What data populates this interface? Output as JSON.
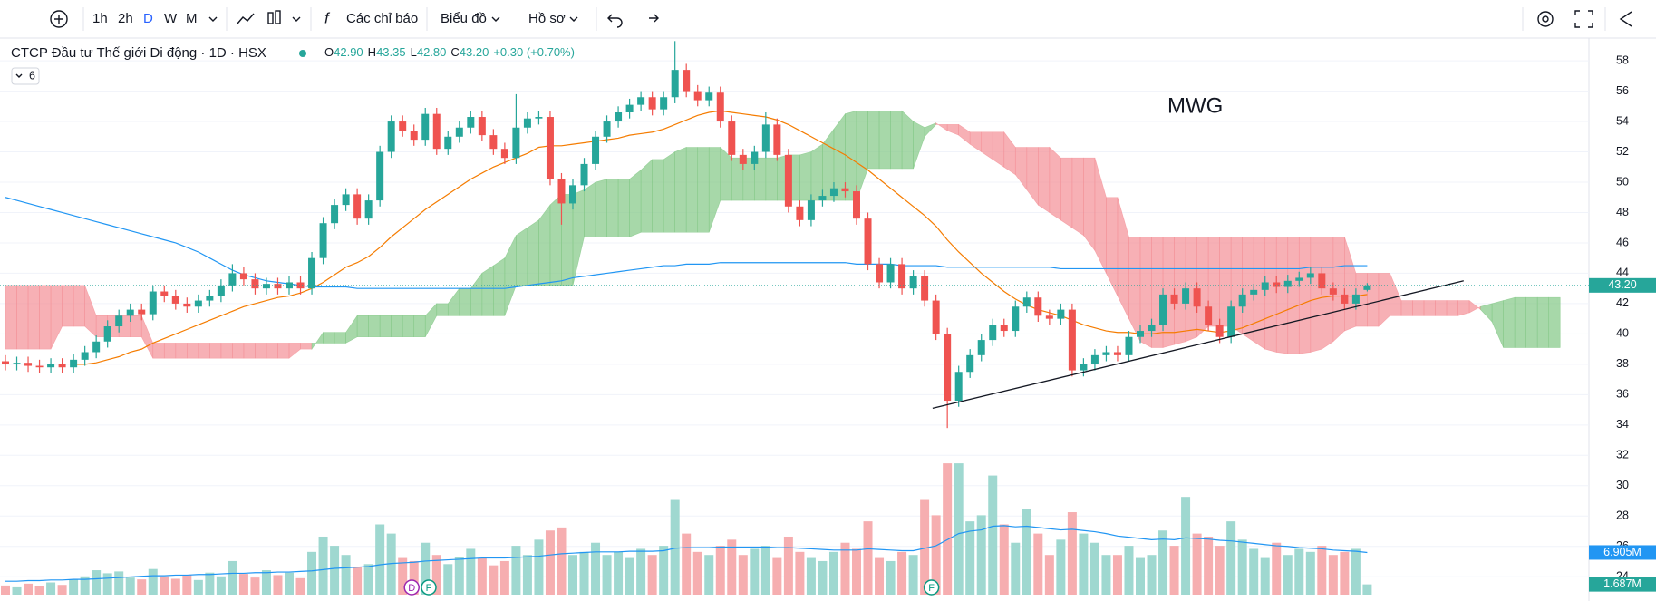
{
  "toolbar": {
    "intervals": [
      "1h",
      "2h",
      "D",
      "W",
      "M"
    ],
    "indicators": "Các chỉ báo",
    "chart": "Biểu đồ",
    "profile": "Hồ sơ"
  },
  "legend": {
    "indicator_count": "6",
    "ohlc": [
      "O",
      "42.90",
      "H",
      "43.35",
      "L",
      "42.80",
      "C",
      "43.20",
      "+0.30 (+0.70%)"
    ]
  },
  "chart_data": {
    "type": "candlestick",
    "title": "CTCP Đầu tư Thế giới Di động · 1D · HSX",
    "annotation": "MWG",
    "up_color": "#26a69a",
    "down_color": "#ef5350",
    "volume_up_color": "#9fd8d0",
    "volume_down_color": "#f6aeb0",
    "ylim": [
      22.4,
      59.2
    ],
    "yticks": [
      24,
      26,
      28,
      30,
      32,
      34,
      36,
      38,
      40,
      42,
      44,
      46,
      48,
      50,
      52,
      54,
      56,
      58
    ],
    "grid": true,
    "vlim": [
      0,
      23
    ],
    "open": [
      38.2,
      38.0,
      38.1,
      37.9,
      37.8,
      38.0,
      37.8,
      38.3,
      38.8,
      39.5,
      40.5,
      41.2,
      41.6,
      41.3,
      42.8,
      42.5,
      42.0,
      41.8,
      42.2,
      42.5,
      43.2,
      44.0,
      43.6,
      43.0,
      43.3,
      43.0,
      43.4,
      43.0,
      45.0,
      47.3,
      48.5,
      49.2,
      47.6,
      48.8,
      52.0,
      54.0,
      53.4,
      52.8,
      54.5,
      52.2,
      53.0,
      53.6,
      54.3,
      53.1,
      52.2,
      51.6,
      53.6,
      54.2,
      54.3,
      50.2,
      48.6,
      49.8,
      51.2,
      53.0,
      54.0,
      54.6,
      55.1,
      55.6,
      54.8,
      55.6,
      57.4,
      56.0,
      55.4,
      55.9,
      54.0,
      51.8,
      51.2,
      52.0,
      53.8,
      51.8,
      48.4,
      47.5,
      48.8,
      49.1,
      49.6,
      49.4,
      47.6,
      44.6,
      43.4,
      44.6,
      43.0,
      43.8,
      42.2,
      40.0,
      35.6,
      37.5,
      38.6,
      39.6,
      40.6,
      40.2,
      41.8,
      42.4,
      41.2,
      41.0,
      41.6,
      37.6,
      38.0,
      38.6,
      38.8,
      38.6,
      39.8,
      40.2,
      40.6,
      42.6,
      42.0,
      43.0,
      41.8,
      40.6,
      39.8,
      41.8,
      42.6,
      42.9,
      43.4,
      43.1,
      43.5,
      43.7,
      44.0,
      43.0,
      42.6,
      42.0,
      42.9
    ],
    "high": [
      38.6,
      38.5,
      38.5,
      38.3,
      38.4,
      38.4,
      38.7,
      39.2,
      39.9,
      40.9,
      41.6,
      42.0,
      42.0,
      43.2,
      43.2,
      42.9,
      42.4,
      42.6,
      42.9,
      43.6,
      44.6,
      44.4,
      44.0,
      43.7,
      43.7,
      43.8,
      43.8,
      45.4,
      47.7,
      48.9,
      49.6,
      49.6,
      49.2,
      52.4,
      54.4,
      54.4,
      53.8,
      54.9,
      54.9,
      53.4,
      54.0,
      54.7,
      54.7,
      53.5,
      52.6,
      55.8,
      54.6,
      54.7,
      54.7,
      50.6,
      50.2,
      51.6,
      53.4,
      54.4,
      55.0,
      55.5,
      56.0,
      56.0,
      56.0,
      59.3,
      57.8,
      56.4,
      56.3,
      56.3,
      54.4,
      52.2,
      52.4,
      54.6,
      54.2,
      52.2,
      48.8,
      49.2,
      49.5,
      50.0,
      50.0,
      49.8,
      48.0,
      45.0,
      45.0,
      45.0,
      44.2,
      44.2,
      42.6,
      40.4,
      37.9,
      39.0,
      40.0,
      41.0,
      41.0,
      42.2,
      42.8,
      42.8,
      41.6,
      42.0,
      42.0,
      38.4,
      39.0,
      39.2,
      39.2,
      40.2,
      40.6,
      41.0,
      43.0,
      43.0,
      43.4,
      43.4,
      42.2,
      41.0,
      42.2,
      43.0,
      43.3,
      43.8,
      43.8,
      43.9,
      44.1,
      44.4,
      44.4,
      43.4,
      43.0,
      43.0,
      43.35
    ],
    "low": [
      37.6,
      37.6,
      37.5,
      37.4,
      37.4,
      37.4,
      37.4,
      37.9,
      38.4,
      39.1,
      40.1,
      40.8,
      40.9,
      40.9,
      42.1,
      41.6,
      41.4,
      41.4,
      41.8,
      42.1,
      42.8,
      43.2,
      42.6,
      42.6,
      42.6,
      42.6,
      42.6,
      42.6,
      44.6,
      46.9,
      48.1,
      47.2,
      47.2,
      48.4,
      51.6,
      53.0,
      52.4,
      52.4,
      51.8,
      51.8,
      52.6,
      53.2,
      52.7,
      51.8,
      51.2,
      51.2,
      53.2,
      53.8,
      49.8,
      47.2,
      48.2,
      49.4,
      50.8,
      52.6,
      53.6,
      54.2,
      54.7,
      54.4,
      54.4,
      55.2,
      55.6,
      55.0,
      55.0,
      53.6,
      51.4,
      50.8,
      50.8,
      51.6,
      51.4,
      48.0,
      47.1,
      47.1,
      48.4,
      48.7,
      49.0,
      47.2,
      44.2,
      43.0,
      43.0,
      42.6,
      42.6,
      41.8,
      39.6,
      33.8,
      35.2,
      37.1,
      38.2,
      39.2,
      39.8,
      39.8,
      41.4,
      40.8,
      40.6,
      40.6,
      37.2,
      37.2,
      37.6,
      38.2,
      38.2,
      38.2,
      39.4,
      39.8,
      40.2,
      41.6,
      41.6,
      41.4,
      40.2,
      39.4,
      39.4,
      41.4,
      42.2,
      42.5,
      42.7,
      42.7,
      43.1,
      43.3,
      42.6,
      42.2,
      41.6,
      41.6,
      42.8
    ],
    "close": [
      38.0,
      38.1,
      37.9,
      37.8,
      38.0,
      37.8,
      38.3,
      38.8,
      39.5,
      40.5,
      41.2,
      41.6,
      41.3,
      42.8,
      42.5,
      42.0,
      41.8,
      42.2,
      42.5,
      43.2,
      44.0,
      43.6,
      43.0,
      43.3,
      43.0,
      43.4,
      43.0,
      45.0,
      47.3,
      48.5,
      49.2,
      47.6,
      48.8,
      52.0,
      54.0,
      53.4,
      52.8,
      54.5,
      52.2,
      53.0,
      53.6,
      54.3,
      53.1,
      52.2,
      51.6,
      53.6,
      54.2,
      54.3,
      50.2,
      48.6,
      49.8,
      51.2,
      53.0,
      54.0,
      54.6,
      55.1,
      55.6,
      54.8,
      55.6,
      57.4,
      56.0,
      55.4,
      55.9,
      54.0,
      51.8,
      51.2,
      52.0,
      53.8,
      51.8,
      48.4,
      47.5,
      48.8,
      49.1,
      49.6,
      49.4,
      47.6,
      44.6,
      43.4,
      44.6,
      43.0,
      43.8,
      42.2,
      40.0,
      35.6,
      37.5,
      38.6,
      39.6,
      40.6,
      40.2,
      41.8,
      42.4,
      41.2,
      41.0,
      41.6,
      37.6,
      38.0,
      38.6,
      38.8,
      38.6,
      39.8,
      40.2,
      40.6,
      42.6,
      42.0,
      43.0,
      41.8,
      40.6,
      39.8,
      41.8,
      42.6,
      42.9,
      43.4,
      43.1,
      43.5,
      43.7,
      44.0,
      43.0,
      42.6,
      42.0,
      42.6,
      43.2
    ],
    "volume": [
      1.5,
      1.2,
      1.8,
      1.4,
      2.0,
      1.6,
      2.5,
      3.0,
      4.0,
      3.5,
      3.8,
      2.8,
      2.5,
      4.2,
      3.0,
      2.6,
      3.2,
      2.4,
      3.6,
      3.0,
      5.5,
      3.4,
      2.8,
      4.0,
      3.2,
      3.6,
      2.7,
      7.0,
      9.5,
      8.0,
      6.5,
      4.5,
      5.0,
      11.5,
      10.0,
      6.0,
      5.5,
      8.5,
      6.5,
      5.0,
      6.2,
      7.5,
      6.0,
      4.8,
      5.5,
      8.0,
      6.5,
      9.0,
      10.5,
      11.0,
      6.5,
      7.0,
      8.5,
      6.5,
      7.0,
      6.0,
      7.5,
      6.5,
      8.0,
      15.5,
      10.0,
      7.0,
      6.5,
      8.0,
      9.0,
      6.5,
      7.5,
      8.0,
      6.0,
      9.5,
      7.0,
      6.0,
      5.5,
      7.0,
      8.5,
      7.5,
      12.0,
      6.0,
      5.5,
      7.0,
      6.5,
      15.5,
      13.0,
      21.5,
      21.5,
      12.0,
      13.0,
      19.5,
      11.5,
      8.5,
      14.0,
      10.0,
      6.5,
      9.0,
      13.5,
      10.0,
      8.5,
      6.5,
      6.5,
      8.0,
      6.0,
      6.5,
      10.5,
      8.0,
      16.0,
      10.0,
      9.5,
      8.0,
      12.0,
      9.0,
      7.5,
      6.0,
      8.5,
      6.5,
      7.5,
      7.0,
      8.0,
      6.5,
      7.0,
      7.5,
      1.687
    ],
    "volume_ma": {
      "color": "#2196f3",
      "values": [
        2.2,
        2.2,
        2.3,
        2.3,
        2.4,
        2.4,
        2.5,
        2.5,
        2.6,
        2.7,
        2.8,
        2.9,
        3.0,
        3.1,
        3.1,
        3.2,
        3.2,
        3.3,
        3.3,
        3.4,
        3.5,
        3.5,
        3.6,
        3.6,
        3.7,
        3.7,
        3.8,
        3.9,
        4.1,
        4.3,
        4.4,
        4.5,
        4.6,
        4.9,
        5.1,
        5.2,
        5.3,
        5.5,
        5.6,
        5.7,
        5.8,
        5.9,
        6.0,
        6.0,
        6.0,
        6.1,
        6.2,
        6.3,
        6.5,
        6.7,
        6.8,
        6.9,
        7.0,
        7.0,
        7.0,
        7.1,
        7.1,
        7.1,
        7.2,
        7.6,
        7.7,
        7.7,
        7.7,
        7.8,
        7.8,
        7.8,
        7.8,
        7.8,
        7.7,
        7.7,
        7.6,
        7.5,
        7.4,
        7.3,
        7.3,
        7.3,
        7.5,
        7.4,
        7.3,
        7.2,
        7.2,
        7.6,
        8.0,
        9.0,
        10.0,
        10.4,
        10.6,
        11.2,
        11.3,
        11.1,
        11.2,
        11.0,
        10.8,
        10.6,
        10.7,
        10.5,
        10.3,
        10.0,
        9.6,
        9.4,
        9.2,
        9.0,
        9.1,
        9.0,
        9.3,
        9.2,
        9.1,
        8.9,
        8.8,
        8.6,
        8.4,
        8.2,
        8.0,
        7.9,
        7.7,
        7.6,
        7.5,
        7.3,
        7.2,
        7.1,
        6.905
      ]
    },
    "volume_labels": [
      {
        "value": 6.905,
        "label": "6.905M",
        "color": "#2196f3",
        "of": "volume_ma"
      },
      {
        "value": 1.687,
        "label": "1.687M",
        "color": "#26a69a",
        "of": "volume"
      }
    ],
    "last_price": {
      "value": 43.2,
      "label": "43.20",
      "color": "#26a69a"
    },
    "ma_lines": [
      {
        "color": "#f57c00",
        "values": [
          null,
          null,
          null,
          null,
          null,
          null,
          38.0,
          38.0,
          38.1,
          38.3,
          38.5,
          38.8,
          39.0,
          39.4,
          39.7,
          40.0,
          40.3,
          40.6,
          40.9,
          41.2,
          41.5,
          41.8,
          42.0,
          42.2,
          42.4,
          42.5,
          42.7,
          43.0,
          43.4,
          43.9,
          44.4,
          44.7,
          45.1,
          45.7,
          46.4,
          47.0,
          47.6,
          48.2,
          48.7,
          49.2,
          49.7,
          50.2,
          50.6,
          51.0,
          51.3,
          51.6,
          51.9,
          52.3,
          52.4,
          52.4,
          52.5,
          52.6,
          52.7,
          52.8,
          52.9,
          53.1,
          53.2,
          53.3,
          53.5,
          53.8,
          54.1,
          54.4,
          54.6,
          54.7,
          54.6,
          54.5,
          54.4,
          54.3,
          54.1,
          53.8,
          53.4,
          53.0,
          52.6,
          52.2,
          51.8,
          51.3,
          50.8,
          50.2,
          49.6,
          49.0,
          48.4,
          47.8,
          47.1,
          46.2,
          45.4,
          44.7,
          44.0,
          43.4,
          42.8,
          42.3,
          41.9,
          41.6,
          41.4,
          41.2,
          40.9,
          40.6,
          40.4,
          40.2,
          40.1,
          40.1,
          40.0,
          40.0,
          40.1,
          40.1,
          40.2,
          40.3,
          40.2,
          40.1,
          40.2,
          40.4,
          40.7,
          41.0,
          41.3,
          41.6,
          41.9,
          42.2,
          42.4,
          42.5,
          42.5,
          42.5,
          42.6
        ]
      },
      {
        "color": "#2196f3",
        "values": [
          49.0,
          48.8,
          48.6,
          48.4,
          48.2,
          48.0,
          47.8,
          47.6,
          47.4,
          47.2,
          47.0,
          46.8,
          46.6,
          46.4,
          46.2,
          46.0,
          45.7,
          45.4,
          45.0,
          44.6,
          44.2,
          43.9,
          43.7,
          43.5,
          43.4,
          43.3,
          43.2,
          43.1,
          43.1,
          43.1,
          43.1,
          43.0,
          43.0,
          43.0,
          43.0,
          43.0,
          43.0,
          43.0,
          43.0,
          43.0,
          43.0,
          43.0,
          43.0,
          43.0,
          43.0,
          43.1,
          43.2,
          43.3,
          43.4,
          43.5,
          43.7,
          43.8,
          43.9,
          44.0,
          44.1,
          44.2,
          44.3,
          44.4,
          44.5,
          44.5,
          44.6,
          44.6,
          44.6,
          44.7,
          44.7,
          44.7,
          44.7,
          44.7,
          44.7,
          44.7,
          44.7,
          44.7,
          44.7,
          44.7,
          44.7,
          44.6,
          44.6,
          44.6,
          44.6,
          44.5,
          44.5,
          44.5,
          44.5,
          44.4,
          44.4,
          44.4,
          44.4,
          44.4,
          44.4,
          44.4,
          44.4,
          44.4,
          44.4,
          44.3,
          44.3,
          44.3,
          44.3,
          44.3,
          44.3,
          44.3,
          44.3,
          44.3,
          44.3,
          44.3,
          44.3,
          44.3,
          44.3,
          44.3,
          44.3,
          44.3,
          44.3,
          44.3,
          44.3,
          44.3,
          44.3,
          44.4,
          44.4,
          44.4,
          44.5,
          44.5,
          44.5
        ]
      }
    ],
    "cloud": {
      "up_color": "#81c784",
      "down_color": "#f48f96",
      "span_a": [
        39.0,
        39.0,
        39.0,
        39.0,
        39.0,
        40.5,
        40.5,
        40.5,
        39.8,
        39.8,
        39.8,
        39.8,
        39.8,
        38.4,
        38.4,
        38.4,
        38.4,
        38.4,
        38.4,
        38.4,
        38.4,
        38.4,
        38.4,
        38.4,
        38.4,
        38.4,
        39.0,
        39.0,
        40.1,
        40.1,
        40.1,
        41.2,
        41.2,
        41.2,
        41.2,
        41.2,
        41.2,
        41.2,
        42.0,
        42.0,
        43.0,
        43.0,
        44.0,
        44.5,
        45.0,
        46.5,
        47.0,
        47.5,
        48.5,
        49.2,
        49.2,
        49.5,
        50.0,
        50.2,
        50.2,
        50.2,
        50.8,
        51.5,
        51.5,
        52.0,
        52.3,
        52.3,
        52.3,
        52.3,
        51.6,
        51.6,
        51.6,
        51.6,
        51.6,
        51.8,
        51.8,
        52.0,
        52.5,
        53.5,
        54.5,
        54.7,
        54.7,
        54.7,
        54.7,
        54.7,
        54.0,
        53.6,
        53.9,
        53.4,
        53.1,
        52.5,
        52.0,
        51.5,
        51.0,
        50.5,
        49.5,
        48.5,
        48.0,
        47.5,
        47.0,
        46.5,
        45.5,
        44.0,
        42.5,
        41.0,
        39.5,
        39.1,
        39.1,
        39.3,
        39.5,
        39.8,
        40.5,
        40.5,
        40.5,
        40.0,
        39.5,
        39.0,
        38.8,
        38.7,
        38.7,
        38.8,
        39.0,
        39.5,
        40.2,
        40.5,
        40.5,
        40.5,
        41.2,
        41.2,
        41.2,
        41.2,
        41.2,
        41.2,
        41.2,
        41.4,
        41.8,
        42.0,
        42.2,
        42.4,
        42.4,
        42.4,
        42.4,
        42.4
      ],
      "span_b": [
        43.2,
        43.2,
        43.2,
        43.2,
        43.2,
        43.2,
        43.2,
        43.2,
        41.2,
        41.2,
        41.2,
        41.2,
        41.2,
        39.4,
        39.4,
        39.4,
        39.4,
        39.4,
        39.4,
        39.4,
        39.4,
        39.4,
        39.4,
        39.4,
        39.4,
        39.4,
        39.4,
        39.4,
        39.4,
        39.4,
        39.4,
        39.8,
        39.8,
        39.8,
        39.8,
        39.8,
        39.8,
        39.8,
        41.2,
        41.2,
        41.2,
        41.2,
        41.2,
        41.2,
        41.2,
        43.2,
        43.2,
        43.2,
        43.2,
        43.2,
        43.2,
        46.4,
        46.4,
        46.4,
        46.4,
        46.4,
        46.7,
        46.7,
        46.7,
        46.7,
        46.7,
        46.7,
        46.7,
        48.8,
        48.8,
        48.8,
        48.8,
        48.8,
        48.8,
        48.8,
        48.8,
        48.8,
        48.8,
        48.8,
        48.8,
        48.8,
        50.9,
        50.9,
        50.9,
        50.9,
        50.9,
        53.0,
        53.8,
        53.8,
        53.8,
        53.3,
        53.3,
        53.3,
        53.3,
        52.3,
        52.3,
        52.3,
        52.3,
        51.6,
        51.6,
        51.6,
        51.6,
        49.0,
        49.0,
        46.4,
        46.4,
        46.4,
        46.4,
        46.4,
        46.4,
        46.4,
        46.4,
        46.4,
        46.4,
        46.4,
        46.4,
        46.4,
        46.4,
        46.4,
        46.4,
        46.4,
        46.4,
        46.4,
        46.4,
        44.0,
        44.0,
        44.0,
        44.0,
        42.2,
        42.2,
        42.2,
        42.2,
        42.2,
        42.2,
        42.2,
        41.6,
        40.8,
        39.1,
        39.1,
        39.1,
        39.1,
        39.1,
        39.1,
        39.1
      ]
    },
    "trendline": {
      "color": "#131722",
      "x": [
        81.7,
        128.5
      ],
      "y": [
        35.1,
        43.5
      ]
    },
    "events": [
      {
        "label": "D",
        "x": 35.8,
        "color": "#9c27b0"
      },
      {
        "label": "F",
        "x": 37.3,
        "color": "#089981"
      },
      {
        "label": "F",
        "x": 81.6,
        "color": "#089981"
      }
    ]
  }
}
